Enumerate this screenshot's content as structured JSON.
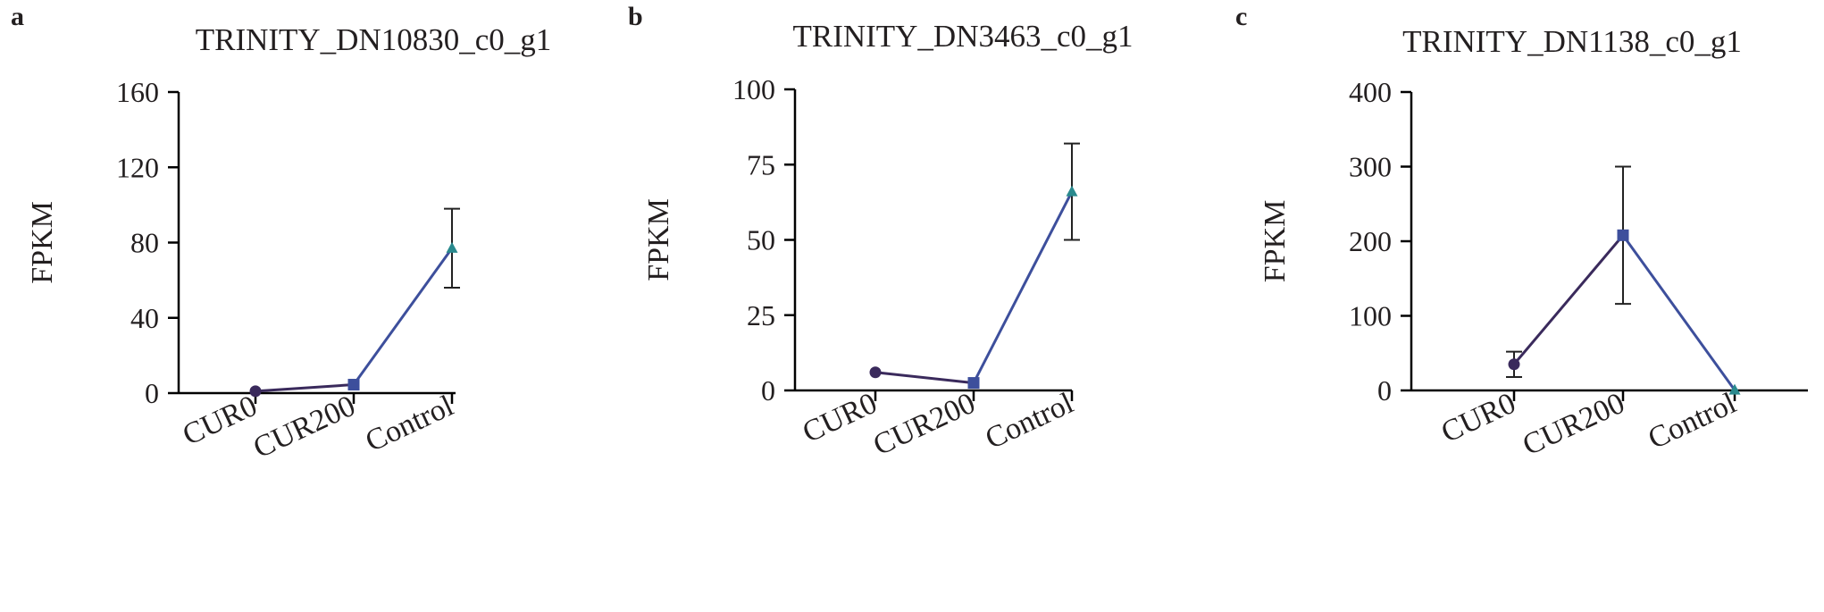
{
  "chart_data": [
    {
      "panel_label": "a",
      "type": "line",
      "title": "TRINITY_DN10830_c0_g1",
      "ylabel": "FPKM",
      "xlabel": "",
      "categories": [
        "CUR0",
        "CUR200",
        "Control"
      ],
      "values": [
        1,
        4.5,
        77
      ],
      "error": [
        0,
        0,
        21
      ],
      "ylim": [
        0,
        160
      ],
      "yticks": [
        "0",
        "40",
        "80",
        "120",
        "160"
      ],
      "markers": [
        "circle",
        "square",
        "triangle"
      ],
      "grid": false
    },
    {
      "panel_label": "b",
      "type": "line",
      "title": "TRINITY_DN3463_c0_g1",
      "ylabel": "FPKM",
      "xlabel": "",
      "categories": [
        "CUR0",
        "CUR200",
        "Control"
      ],
      "values": [
        6,
        2.5,
        66
      ],
      "error": [
        0,
        0,
        16
      ],
      "ylim": [
        0,
        100
      ],
      "yticks": [
        "0",
        "25",
        "50",
        "75",
        "100"
      ],
      "markers": [
        "circle",
        "square",
        "triangle"
      ],
      "grid": false
    },
    {
      "panel_label": "c",
      "type": "line",
      "title": "TRINITY_DN1138_c0_g1",
      "ylabel": "FPKM",
      "xlabel": "",
      "categories": [
        "CUR0",
        "CUR200",
        "Control"
      ],
      "values": [
        35,
        208,
        0.5
      ],
      "error": [
        17,
        92,
        0
      ],
      "ylim": [
        0,
        400
      ],
      "yticks": [
        "0",
        "100",
        "200",
        "300",
        "400"
      ],
      "markers": [
        "circle",
        "square",
        "triangle"
      ],
      "grid": false
    }
  ],
  "colors": {
    "axis": "#000000",
    "segment_first": "#3a2a5c",
    "segment_second": "#3d4f9c",
    "marker_circle": "#3a2a5c",
    "marker_square": "#3d4f9c",
    "marker_triangle": "#2a8a8e",
    "text": "#231f20"
  }
}
